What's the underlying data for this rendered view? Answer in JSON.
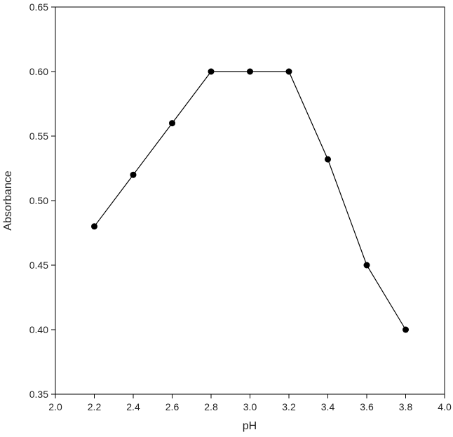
{
  "chart_data": {
    "type": "line",
    "title": "",
    "xlabel": "pH",
    "ylabel": "Absorbance",
    "xlim": [
      2.0,
      4.0
    ],
    "ylim": [
      0.35,
      0.65
    ],
    "x_ticks": [
      2.0,
      2.2,
      2.4,
      2.6,
      2.8,
      3.0,
      3.2,
      3.4,
      3.6,
      3.8,
      4.0
    ],
    "x_tick_labels": [
      "2.0",
      "2.2",
      "2.4",
      "2.6",
      "2.8",
      "3.0",
      "3.2",
      "3.4",
      "3.6",
      "3.8",
      "4.0"
    ],
    "y_ticks": [
      0.35,
      0.4,
      0.45,
      0.5,
      0.55,
      0.6,
      0.65
    ],
    "y_tick_labels": [
      "0.35",
      "0.40",
      "0.45",
      "0.50",
      "0.55",
      "0.60",
      "0.65"
    ],
    "grid": false,
    "series": [
      {
        "x": [
          2.2,
          2.4,
          2.6,
          2.8,
          3.0,
          3.2,
          3.4,
          3.6,
          3.8
        ],
        "y": [
          0.48,
          0.52,
          0.56,
          0.6,
          0.6,
          0.6,
          0.532,
          0.45,
          0.4
        ],
        "color": "#000000",
        "marker": "circle"
      }
    ]
  }
}
